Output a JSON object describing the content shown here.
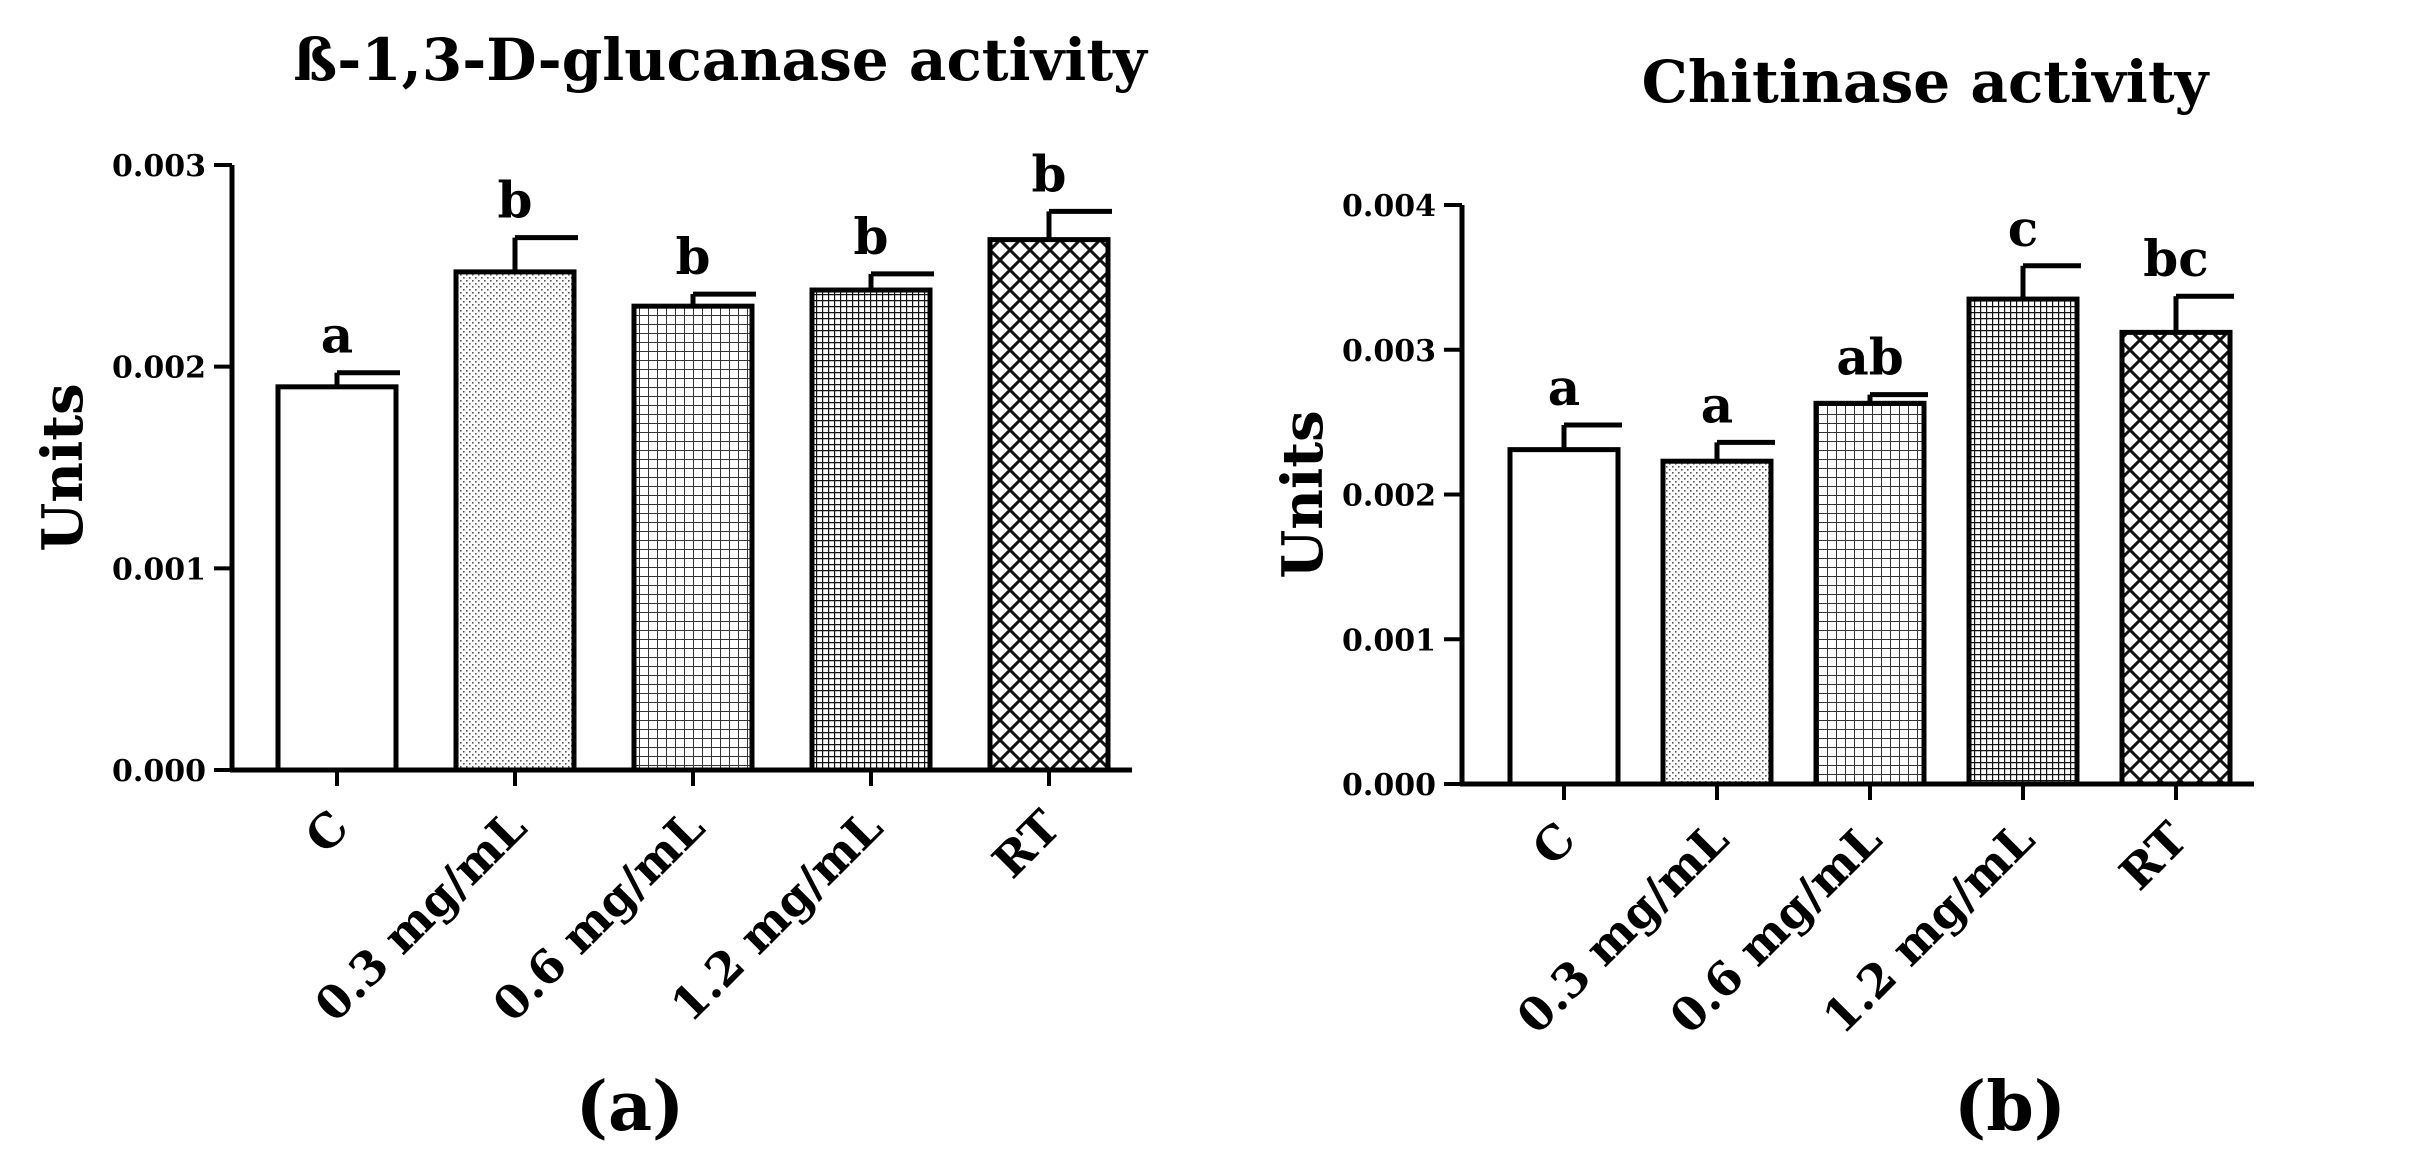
{
  "chart_data": [
    {
      "type": "bar",
      "panel_label": "(a)",
      "title": "ß-1,3-D-glucanase activity",
      "xlabel": "",
      "ylabel": "Units",
      "ylim": [
        0,
        0.003
      ],
      "yticks": [
        "0.000",
        "0.001",
        "0.002",
        "0.003"
      ],
      "categories": [
        "C",
        "0.3 mg/mL",
        "0.6 mg/mL",
        "1.2 mg/mL",
        "RT"
      ],
      "values": [
        0.0019,
        0.00247,
        0.0023,
        0.00238,
        0.00263
      ],
      "errors": [
        7e-05,
        0.00017,
        6e-05,
        8e-05,
        0.00014
      ],
      "letters": [
        "a",
        "b",
        "b",
        "b",
        "b"
      ],
      "patterns": [
        "none",
        "dots",
        "grid",
        "dense-grid",
        "crosshatch"
      ],
      "grid": false
    },
    {
      "type": "bar",
      "panel_label": "(b)",
      "title": "Chitinase activity",
      "xlabel": "",
      "ylabel": "Units",
      "ylim": [
        0,
        0.004
      ],
      "yticks": [
        "0.000",
        "0.001",
        "0.002",
        "0.003",
        "0.004"
      ],
      "categories": [
        "C",
        "0.3 mg/mL",
        "0.6 mg/mL",
        "1.2 mg/mL",
        "RT"
      ],
      "values": [
        0.00231,
        0.00223,
        0.00263,
        0.00335,
        0.00312
      ],
      "errors": [
        0.00017,
        0.00013,
        6e-05,
        0.00023,
        0.00025
      ],
      "letters": [
        "a",
        "a",
        "ab",
        "c",
        "bc"
      ],
      "patterns": [
        "none",
        "dots",
        "grid",
        "dense-grid",
        "crosshatch"
      ],
      "grid": false
    }
  ]
}
